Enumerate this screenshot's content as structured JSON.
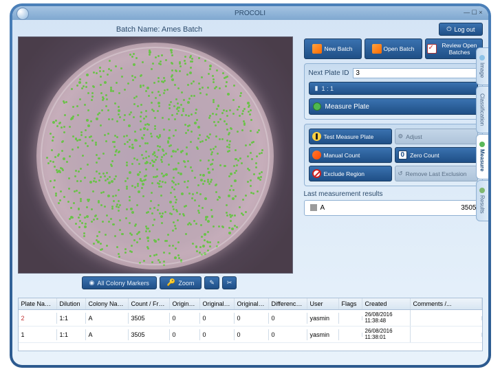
{
  "app": {
    "title": "PROCOLI"
  },
  "batch": {
    "label": "Batch Name: Ames Batch"
  },
  "toolbar": {
    "all_colony": "All Colony Markers",
    "zoom": "Zoom"
  },
  "logout": "Log out",
  "actions": {
    "new_batch": "New Batch",
    "open_batch": "Open Batch",
    "review": "Review Open Batches"
  },
  "next_plate": {
    "label": "Next Plate ID",
    "value": "3"
  },
  "ratio": "1 : 1",
  "measure": "Measure Plate",
  "grid": {
    "test": "Test Measure Plate",
    "adjust": "Adjust",
    "manual": "Manual Count",
    "zero": "Zero Count",
    "exclude": "Exclude Region",
    "remove": "Remove Last Exclusion"
  },
  "lmr": {
    "label": "Last measurement results",
    "name": "A",
    "value": "3505"
  },
  "tabs": {
    "image": "Image",
    "class": "Classification",
    "measure": "Measure",
    "results": "Results"
  },
  "table": {
    "headers": {
      "plate_name": "Plate Name",
      "dilution": "Dilution",
      "colony_name": "Colony Name",
      "count_frame": "Count / Frame",
      "original": "Original...",
      "orig_co": "Original Co...",
      "orig_co2": "Original Co...",
      "diff": "Difference /...",
      "user": "User",
      "flags": "Flags",
      "created": "Created",
      "comments": "Comments /..."
    },
    "rows": [
      {
        "plate_name": "2",
        "dilution": "1:1",
        "colony_name": "A",
        "count_frame": "3505",
        "o1": "0",
        "o2": "0",
        "o3": "0",
        "diff": "0",
        "user": "yasmin",
        "flags": "",
        "created": "26/08/2016 11:38:48",
        "comments": ""
      },
      {
        "plate_name": "1",
        "dilution": "1:1",
        "colony_name": "A",
        "count_frame": "3505",
        "o1": "0",
        "o2": "0",
        "o3": "0",
        "diff": "0",
        "user": "yasmin",
        "flags": "",
        "created": "26/08/2016 11:38:01",
        "comments": ""
      }
    ]
  }
}
